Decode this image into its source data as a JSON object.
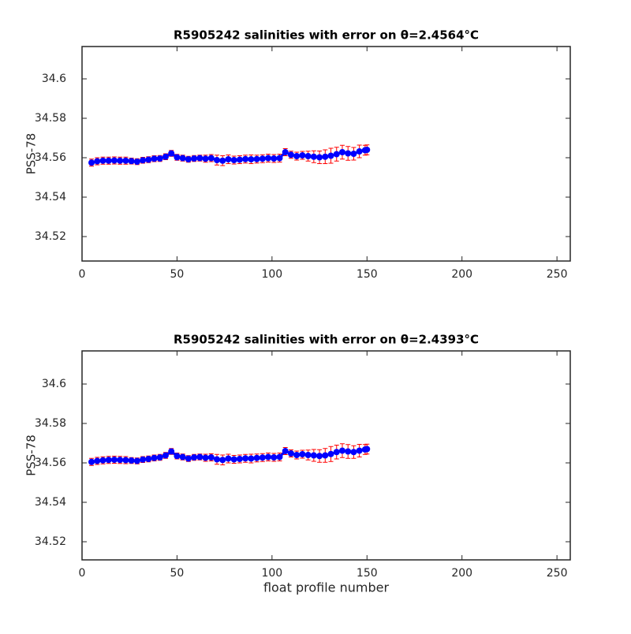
{
  "chart_data": [
    {
      "type": "errorbar",
      "title": "R5905242 salinities with error on θ=2.4564°C",
      "ylabel": "PSS-78",
      "x": [
        5,
        8,
        11,
        14,
        17,
        20,
        23,
        26,
        29,
        32,
        35,
        38,
        41,
        44,
        47,
        50,
        53,
        56,
        59,
        62,
        65,
        68,
        71,
        74,
        77,
        80,
        83,
        86,
        89,
        92,
        95,
        98,
        101,
        104,
        107,
        110,
        113,
        116,
        119,
        122,
        125,
        128,
        131,
        134,
        137,
        140,
        143,
        146,
        149,
        150
      ],
      "values": [
        34.5575,
        34.5582,
        34.5585,
        34.5585,
        34.5586,
        34.5585,
        34.5585,
        34.5583,
        34.558,
        34.5587,
        34.559,
        34.5595,
        34.5596,
        34.5605,
        34.5622,
        34.5602,
        34.5598,
        34.5592,
        34.5596,
        34.5598,
        34.5595,
        34.5598,
        34.5588,
        34.5585,
        34.5592,
        34.5588,
        34.559,
        34.5593,
        34.5592,
        34.5593,
        34.5595,
        34.5598,
        34.5596,
        34.5598,
        34.5628,
        34.5615,
        34.5608,
        34.5612,
        34.5608,
        34.5605,
        34.5602,
        34.5605,
        34.561,
        34.5618,
        34.5628,
        34.5622,
        34.562,
        34.5632,
        34.5638,
        34.564
      ],
      "errors": [
        0.0018,
        0.0018,
        0.0018,
        0.0018,
        0.0018,
        0.0018,
        0.0018,
        0.0015,
        0.0015,
        0.0015,
        0.0015,
        0.0015,
        0.0015,
        0.0015,
        0.0015,
        0.0015,
        0.0015,
        0.0015,
        0.0015,
        0.0015,
        0.0018,
        0.0018,
        0.0025,
        0.0025,
        0.0022,
        0.002,
        0.002,
        0.002,
        0.0022,
        0.002,
        0.002,
        0.002,
        0.002,
        0.002,
        0.0018,
        0.0018,
        0.002,
        0.002,
        0.0025,
        0.003,
        0.0032,
        0.0035,
        0.0038,
        0.0035,
        0.0035,
        0.0035,
        0.0032,
        0.0032,
        0.0025,
        0.0025
      ],
      "color": "#0000ff",
      "error_color": "#ff0000",
      "xlim": [
        0,
        257
      ],
      "xticks": [
        0,
        50,
        100,
        150,
        200,
        250
      ],
      "ylim": [
        34.5076,
        34.6164
      ],
      "yticks": [
        34.52,
        34.54,
        34.56,
        34.58,
        34.6
      ]
    },
    {
      "type": "errorbar",
      "title": "R5905242 salinities with error on θ=2.4393°C",
      "ylabel": "PSS-78",
      "xlabel": "float profile number",
      "x": [
        5,
        8,
        11,
        14,
        17,
        20,
        23,
        26,
        29,
        32,
        35,
        38,
        41,
        44,
        47,
        50,
        53,
        56,
        59,
        62,
        65,
        68,
        71,
        74,
        77,
        80,
        83,
        86,
        89,
        92,
        95,
        98,
        101,
        104,
        107,
        110,
        113,
        116,
        119,
        122,
        125,
        128,
        131,
        134,
        137,
        140,
        143,
        146,
        149,
        150
      ],
      "values": [
        34.5605,
        34.561,
        34.5613,
        34.5615,
        34.5616,
        34.5615,
        34.5614,
        34.5612,
        34.561,
        34.5617,
        34.562,
        34.5625,
        34.5628,
        34.5638,
        34.5658,
        34.5635,
        34.563,
        34.5622,
        34.5628,
        34.563,
        34.5626,
        34.5628,
        34.5618,
        34.5615,
        34.5622,
        34.5618,
        34.562,
        34.5623,
        34.5622,
        34.5625,
        34.5627,
        34.563,
        34.5628,
        34.563,
        34.566,
        34.5648,
        34.564,
        34.5644,
        34.564,
        34.5638,
        34.5635,
        34.5638,
        34.5645,
        34.5655,
        34.5662,
        34.5658,
        34.5655,
        34.5662,
        34.5668,
        34.567
      ],
      "errors": [
        0.0018,
        0.0018,
        0.0018,
        0.0018,
        0.0018,
        0.0018,
        0.0018,
        0.0015,
        0.0015,
        0.0015,
        0.0015,
        0.0015,
        0.0015,
        0.0015,
        0.0015,
        0.0015,
        0.0015,
        0.0015,
        0.0015,
        0.0015,
        0.0018,
        0.0018,
        0.0025,
        0.0025,
        0.0022,
        0.002,
        0.002,
        0.002,
        0.0022,
        0.002,
        0.002,
        0.002,
        0.002,
        0.002,
        0.0018,
        0.0018,
        0.002,
        0.002,
        0.0025,
        0.003,
        0.0032,
        0.0035,
        0.0038,
        0.0035,
        0.0035,
        0.0035,
        0.0032,
        0.0032,
        0.0025,
        0.0025
      ],
      "color": "#0000ff",
      "error_color": "#ff0000",
      "xlim": [
        0,
        257
      ],
      "xticks": [
        0,
        50,
        100,
        150,
        200,
        250
      ],
      "ylim": [
        34.5108,
        34.6168
      ],
      "yticks": [
        34.52,
        34.54,
        34.56,
        34.58,
        34.6
      ]
    }
  ]
}
